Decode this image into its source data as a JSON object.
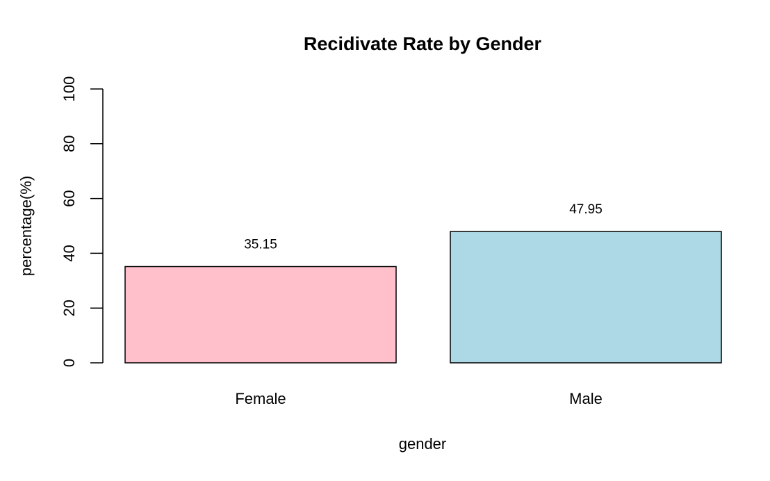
{
  "chart_data": {
    "type": "bar",
    "title": "Recidivate Rate by Gender",
    "xlabel": "gender",
    "ylabel": "percentage(%)",
    "categories": [
      "Female",
      "Male"
    ],
    "values": [
      35.15,
      47.95
    ],
    "data_labels": [
      "35.15",
      "47.95"
    ],
    "bar_colors": [
      "#FFC0CB",
      "#ADD8E6"
    ],
    "ylim": [
      0,
      100
    ],
    "yticks": [
      0,
      20,
      40,
      60,
      80,
      100
    ],
    "ytick_labels": [
      "0",
      "20",
      "40",
      "60",
      "80",
      "100"
    ],
    "grid": false,
    "legend": "none"
  }
}
